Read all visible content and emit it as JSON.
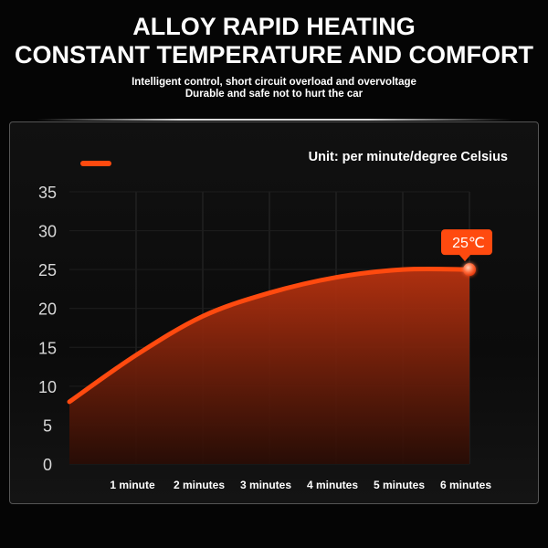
{
  "header": {
    "title_line1": "ALLOY RAPID HEATING",
    "title_line2": "CONSTANT TEMPERATURE AND COMFORT",
    "subtitle_line1": "Intelligent control, short circuit overload and overvoltage",
    "subtitle_line2": "Durable and safe not to hurt the car"
  },
  "colors": {
    "accent": "#ff4a0f",
    "fill_top": "#b83210",
    "fill_bottom": "#2a0c04",
    "background": "#050505"
  },
  "chart_data": {
    "type": "area",
    "unit_label": "Unit: per minute/degree Celsius",
    "x": [
      "",
      "1 minute",
      "2 minutes",
      "3 minutes",
      "4 minutes",
      "5 minutes",
      "6 minutes"
    ],
    "x_ticks": [
      "1 minute",
      "2 minutes",
      "3 minutes",
      "4 minutes",
      "5 minutes",
      "6 minutes"
    ],
    "values": [
      8,
      14,
      19,
      22,
      24,
      25,
      25
    ],
    "ylim": [
      0,
      35
    ],
    "y_ticks": [
      0,
      5,
      10,
      15,
      20,
      25,
      30,
      35
    ],
    "grid": true,
    "end_label": "25℃",
    "legend": [
      {
        "name": ""
      }
    ]
  }
}
